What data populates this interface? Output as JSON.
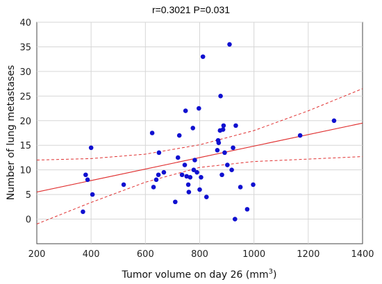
{
  "chart_data": {
    "type": "scatter",
    "title": "r=0.3021  P=0.031",
    "xlabel": "Tumor volume on day 26 (mm",
    "xlabel_superscript": "3",
    "xlabel_suffix": ")",
    "ylabel": "Number of lung metastases",
    "xlim": [
      200,
      1400
    ],
    "ylim": [
      -5,
      40
    ],
    "xticks": [
      200,
      400,
      600,
      800,
      1000,
      1200,
      1400
    ],
    "yticks": [
      0,
      5,
      10,
      15,
      20,
      25,
      30,
      35,
      40
    ],
    "grid": true,
    "point_color": "#1010d0",
    "fit_color": "#e03030",
    "fit_line": {
      "x": [
        200,
        1400
      ],
      "y": [
        5.5,
        19.5
      ]
    },
    "confidence_upper": {
      "x": [
        200,
        400,
        600,
        800,
        1000,
        1200,
        1400
      ],
      "y": [
        12.0,
        12.3,
        13.2,
        15.1,
        18.0,
        22.0,
        26.5
      ]
    },
    "confidence_lower": {
      "x": [
        200,
        400,
        600,
        800,
        1000,
        1200,
        1400
      ],
      "y": [
        -1.0,
        3.4,
        7.5,
        10.5,
        11.7,
        12.2,
        12.7
      ]
    },
    "points": [
      {
        "x": 370,
        "y": 1.5
      },
      {
        "x": 380,
        "y": 9
      },
      {
        "x": 387,
        "y": 8
      },
      {
        "x": 400,
        "y": 14.5
      },
      {
        "x": 405,
        "y": 5
      },
      {
        "x": 520,
        "y": 7
      },
      {
        "x": 625,
        "y": 17.5
      },
      {
        "x": 630,
        "y": 6.5
      },
      {
        "x": 640,
        "y": 8
      },
      {
        "x": 648,
        "y": 9
      },
      {
        "x": 650,
        "y": 13.5
      },
      {
        "x": 668,
        "y": 9.5
      },
      {
        "x": 710,
        "y": 3.5
      },
      {
        "x": 720,
        "y": 12.5
      },
      {
        "x": 725,
        "y": 17
      },
      {
        "x": 735,
        "y": 9
      },
      {
        "x": 745,
        "y": 11
      },
      {
        "x": 748,
        "y": 22
      },
      {
        "x": 752,
        "y": 8.7
      },
      {
        "x": 758,
        "y": 7
      },
      {
        "x": 760,
        "y": 5.5
      },
      {
        "x": 765,
        "y": 8.5
      },
      {
        "x": 775,
        "y": 18.5
      },
      {
        "x": 778,
        "y": 10
      },
      {
        "x": 782,
        "y": 12
      },
      {
        "x": 790,
        "y": 9.5
      },
      {
        "x": 797,
        "y": 22.5
      },
      {
        "x": 800,
        "y": 6
      },
      {
        "x": 805,
        "y": 8.5
      },
      {
        "x": 812,
        "y": 33
      },
      {
        "x": 825,
        "y": 4.5
      },
      {
        "x": 865,
        "y": 14
      },
      {
        "x": 868,
        "y": 16
      },
      {
        "x": 870,
        "y": 15.5
      },
      {
        "x": 875,
        "y": 18
      },
      {
        "x": 877,
        "y": 25
      },
      {
        "x": 882,
        "y": 9
      },
      {
        "x": 886,
        "y": 18.2
      },
      {
        "x": 888,
        "y": 19
      },
      {
        "x": 892,
        "y": 13.5
      },
      {
        "x": 902,
        "y": 11
      },
      {
        "x": 910,
        "y": 35.5
      },
      {
        "x": 918,
        "y": 10
      },
      {
        "x": 923,
        "y": 14.5
      },
      {
        "x": 930,
        "y": 0
      },
      {
        "x": 933,
        "y": 19
      },
      {
        "x": 950,
        "y": 6.5
      },
      {
        "x": 975,
        "y": 2
      },
      {
        "x": 997,
        "y": 7
      },
      {
        "x": 1170,
        "y": 17
      },
      {
        "x": 1295,
        "y": 20
      }
    ]
  }
}
